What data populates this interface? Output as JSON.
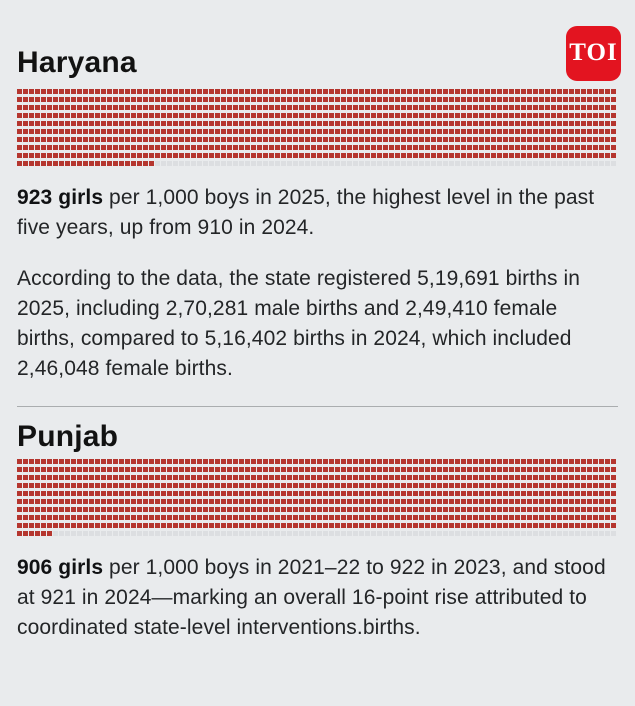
{
  "page": {
    "background_color": "#e9ebed",
    "text_color": "#232527"
  },
  "logo": {
    "text": "TOI",
    "background_color": "#e31420",
    "text_color": "#ffffff"
  },
  "sections": [
    {
      "title": "Haryana",
      "stat_bold": "923 girls",
      "stat_rest": " per 1,000 boys in 2025, the highest level in the past five years, up from 910 in 2024.",
      "detail": "According to the data, the state registered 5,19,691 births in 2025, including 2,70,281 male births and 2,49,410 female births,  compared to 5,16,402 births in 2024, which included 2,46,048 female births."
    },
    {
      "title": "Punjab",
      "stat_bold": "906 girls",
      "stat_rest": " per 1,000 boys in 2021–22 to 922 in 2023, and stood at 921 in 2024—marking an overall 16-point rise attributed to coordinated state-level interventions.births."
    }
  ],
  "chart_data": [
    {
      "type": "waffle",
      "title": "Haryana sex ratio at birth",
      "value": 923,
      "total": 1000,
      "rows": 10,
      "columns": 100,
      "unit": "girls per 1,000 boys",
      "year": "2025",
      "filled_color": "#b5362f",
      "empty_color": "#dcdee1"
    },
    {
      "type": "waffle",
      "title": "Punjab sex ratio at birth",
      "value": 906,
      "total": 1000,
      "rows": 10,
      "columns": 100,
      "unit": "girls per 1,000 boys",
      "year": "2021–22",
      "filled_color": "#b5362f",
      "empty_color": "#dcdee1"
    }
  ]
}
